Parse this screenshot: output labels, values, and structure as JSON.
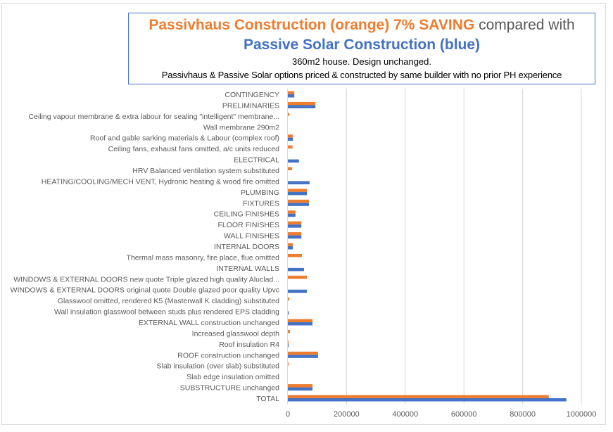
{
  "title": {
    "line1_orange": "Passivhaus Construction (orange) 7% SAVING",
    "line1_gray": " compared with",
    "line2_blue": "Passive Solar Construction (blue)",
    "line3": "360m2 house. Design unchanged.",
    "line4": "Passivhaus & Passive Solar options priced & constructed by same builder with no prior PH experience"
  },
  "colors": {
    "passivhaus": "#ED7D31",
    "passive_solar": "#4472C4",
    "gridline": "#D9D9D9",
    "label": "#595959"
  },
  "chart_data": {
    "type": "bar",
    "orientation": "horizontal",
    "title": "Passivhaus Construction (orange) 7% SAVING compared with Passive Solar Construction (blue)",
    "subtitle": "360m2 house. Design unchanged. Passivhaus & Passive Solar options priced & constructed by same builder with no prior PH experience",
    "xlabel": "",
    "ylabel": "",
    "xlim": [
      0,
      1000000
    ],
    "x_ticks": [
      0,
      200000,
      400000,
      600000,
      800000,
      1000000
    ],
    "x_tick_labels": [
      "0",
      "200000",
      "400000",
      "600000",
      "800000",
      "1000000"
    ],
    "grid": "vertical",
    "legend": "none",
    "categories": [
      "CONTINGENCY",
      "PRELIMINARIES",
      "Ceiling vapour membrane & extra labour for sealing \"intelligent\" membrane...",
      "Wall membrane 290m2",
      "Roof and gable sarking materials & Labour (complex roof)",
      "Ceiling fans, exhaust fans omitted, a/c units reduced",
      "ELECTRICAL",
      "HRV Balanced ventilation system substituted",
      "HEATING/COOLING/MECH VENT, Hydronic heating & wood fire omitted",
      "PLUMBING",
      "FIXTURES",
      "CEILING FINISHES",
      "FLOOR FINISHES",
      "WALL FINISHES",
      "INTERNAL DOORS",
      "Thermal mass masonry, fire place, flue omitted",
      "INTERNAL WALLS",
      "WINDOWS & EXTERNAL DOORS new quote Triple glazed high quality Aluclad...",
      "WINDOWS & EXTERNAL DOORS original quote Double glazed poor quality Upvc",
      "Glasswool omitted, rendered K5 (Masterwall K cladding) substituted",
      "Wall insulation glasswool between studs plus rendered EPS cladding",
      "EXTERNAL WALL construction unchanged",
      "Increased glasswool depth",
      "Roof insulation R4",
      "ROOF construction unchanged",
      "Slab insulation (over slab) substituted",
      "Slab edge insulation omitted",
      "SUBSTRUCTURE unchanged",
      "TOTAL"
    ],
    "series": [
      {
        "name": "Passivhaus Construction",
        "color": "#ED7D31",
        "values": [
          22000,
          94000,
          5000,
          0,
          17000,
          16000,
          0,
          14000,
          0,
          65000,
          72000,
          26000,
          46000,
          46000,
          17000,
          48000,
          0,
          65000,
          0,
          5000,
          0,
          84000,
          7000,
          2000,
          103000,
          2000,
          0,
          84000,
          889000
        ]
      },
      {
        "name": "Passive Solar Construction",
        "color": "#4472C4",
        "values": [
          22000,
          94000,
          0,
          0,
          17000,
          0,
          38000,
          0,
          74000,
          65000,
          72000,
          26000,
          46000,
          46000,
          17000,
          0,
          55000,
          0,
          65000,
          0,
          3000,
          84000,
          0,
          2000,
          103000,
          0,
          0,
          84000,
          949000
        ]
      }
    ]
  }
}
